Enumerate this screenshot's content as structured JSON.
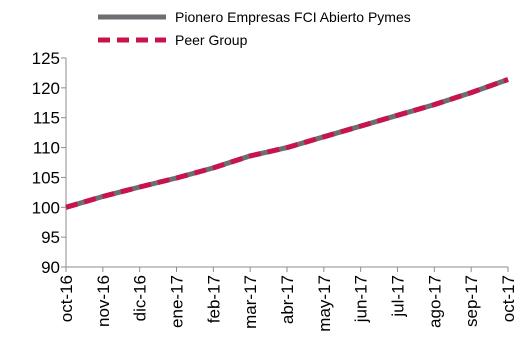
{
  "chart_data": {
    "type": "line",
    "title": "",
    "xlabel": "",
    "ylabel": "",
    "categories": [
      "oct-16",
      "nov-16",
      "dic-16",
      "ene-17",
      "feb-17",
      "mar-17",
      "abr-17",
      "may-17",
      "jun-17",
      "jul-17",
      "ago-17",
      "sep-17",
      "oct-17"
    ],
    "series": [
      {
        "name": "Pionero Empresas FCI Abierto Pymes",
        "color": "#6d6e71",
        "style": "solid",
        "values": [
          100.0,
          101.8,
          103.4,
          104.9,
          106.6,
          108.6,
          110.0,
          111.8,
          113.6,
          115.4,
          117.2,
          119.2,
          121.4
        ]
      },
      {
        "name": "Peer Group",
        "color": "#c8144b",
        "style": "dashed",
        "values": [
          100.0,
          101.8,
          103.4,
          104.9,
          106.6,
          108.6,
          110.0,
          111.8,
          113.6,
          115.4,
          117.2,
          119.2,
          121.4
        ]
      }
    ],
    "ylim": [
      90,
      125
    ],
    "yticks": [
      90,
      95,
      100,
      105,
      110,
      115,
      120,
      125
    ],
    "grid": false,
    "legend_position": "top"
  }
}
